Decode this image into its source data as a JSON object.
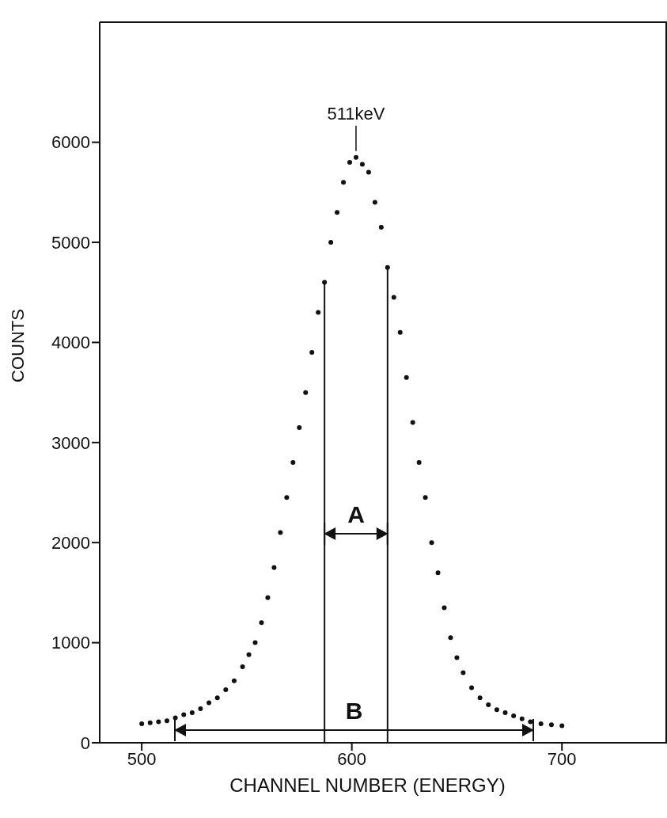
{
  "chart_data": {
    "type": "scatter",
    "xlabel": "CHANNEL NUMBER (ENERGY)",
    "ylabel": "COUNTS",
    "x": [
      500,
      504,
      508,
      512,
      516,
      520,
      524,
      528,
      532,
      536,
      540,
      544,
      548,
      551,
      554,
      557,
      560,
      563,
      566,
      569,
      572,
      575,
      578,
      581,
      584,
      587,
      590,
      593,
      596,
      599,
      602,
      605,
      608,
      611,
      614,
      617,
      620,
      623,
      626,
      629,
      632,
      635,
      638,
      641,
      644,
      647,
      650,
      653,
      657,
      661,
      665,
      669,
      673,
      677,
      681,
      685,
      690,
      695,
      700
    ],
    "series": [
      {
        "color": "#111111",
        "values": [
          190,
          200,
          210,
          220,
          250,
          280,
          300,
          340,
          400,
          450,
          530,
          620,
          760,
          880,
          1000,
          1200,
          1450,
          1750,
          2100,
          2450,
          2800,
          3150,
          3500,
          3900,
          4300,
          4600,
          5000,
          5300,
          5600,
          5800,
          5850,
          5780,
          5700,
          5400,
          5150,
          4750,
          4450,
          4100,
          3650,
          3200,
          2800,
          2450,
          2000,
          1700,
          1350,
          1050,
          850,
          700,
          550,
          450,
          380,
          330,
          300,
          270,
          240,
          210,
          190,
          180,
          170
        ]
      }
    ],
    "xlim": [
      480,
      750
    ],
    "xticks": [
      500,
      600,
      700
    ],
    "ylim": [
      0,
      7200
    ],
    "yticks": [
      0,
      1000,
      2000,
      3000,
      4000,
      5000,
      6000
    ],
    "grid": false,
    "marker": "circle",
    "ref_lines": [
      {
        "axis": "x",
        "value": 587,
        "label": null,
        "color": "#111111"
      },
      {
        "axis": "x",
        "value": 617,
        "label": null,
        "color": "#111111"
      }
    ],
    "annotations": [
      {
        "text": "511keV",
        "x": 602,
        "y": 5850
      },
      "A",
      "B"
    ]
  }
}
